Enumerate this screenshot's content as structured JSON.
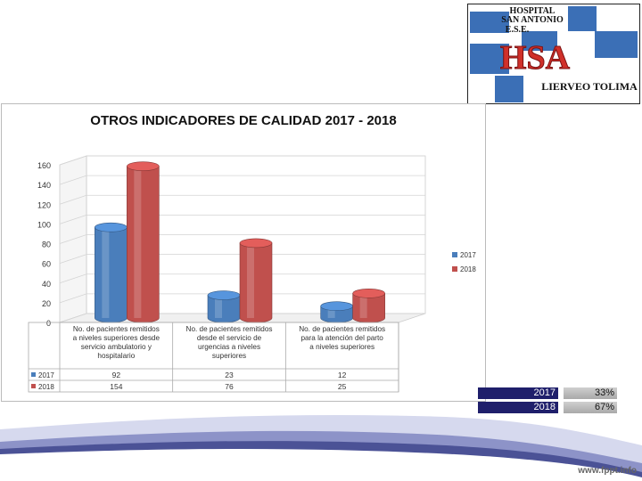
{
  "logo": {
    "line1": "HOSPITAL",
    "line2": "SAN ANTONIO",
    "line3": "E.S.E.",
    "initials": "HSA",
    "town": "LIERVEO TOLIMA"
  },
  "chart_data": {
    "type": "bar",
    "title": "OTROS INDICADORES DE CALIDAD 2017 - 2018",
    "categories": [
      "No. de pacientes remitidos a niveles superiores desde servicio ambulatorio y hospitalario",
      "No. de pacientes remitidos desde el servicio de urgencias a niveles superiores",
      "No. de pacientes remitidos para la atención del parto a niveles superiores"
    ],
    "series": [
      {
        "name": "2017",
        "color": "#4a7ebb",
        "values": [
          92,
          23,
          12
        ]
      },
      {
        "name": "2018",
        "color": "#c0504d",
        "values": [
          154,
          76,
          25
        ]
      }
    ],
    "ylim": [
      0,
      160
    ],
    "yticks": [
      0,
      20,
      40,
      60,
      80,
      100,
      120,
      140,
      160
    ],
    "grid": true,
    "legend": "right",
    "data_table": true
  },
  "percentages": [
    {
      "year": "2017",
      "value": "33%"
    },
    {
      "year": "2018",
      "value": "67%"
    }
  ],
  "footer": {
    "url": "www.fppt.info"
  }
}
